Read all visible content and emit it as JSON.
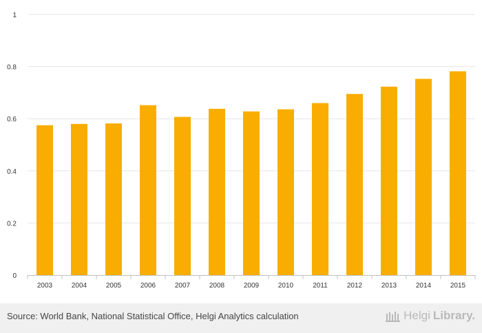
{
  "chart_data": {
    "type": "bar",
    "categories": [
      "2003",
      "2004",
      "2005",
      "2006",
      "2007",
      "2008",
      "2009",
      "2010",
      "2011",
      "2012",
      "2013",
      "2014",
      "2015"
    ],
    "values": [
      0.575,
      0.58,
      0.582,
      0.652,
      0.607,
      0.638,
      0.628,
      0.636,
      0.66,
      0.695,
      0.723,
      0.753,
      0.782
    ],
    "ylim": [
      0,
      1
    ],
    "yticks": [
      "0",
      "0.2",
      "0.4",
      "0.6",
      "0.8",
      "1"
    ],
    "yticks_values": [
      0,
      0.2,
      0.4,
      0.6,
      0.8,
      1
    ],
    "bar_color": "#f9ad00",
    "title": "",
    "xlabel": "",
    "ylabel": "",
    "grid": true
  },
  "footer": {
    "source": "Source: World Bank, National Statistical Office, Helgi Analytics calculation",
    "brand_part1": "Helgi",
    "brand_part2": "Library."
  }
}
